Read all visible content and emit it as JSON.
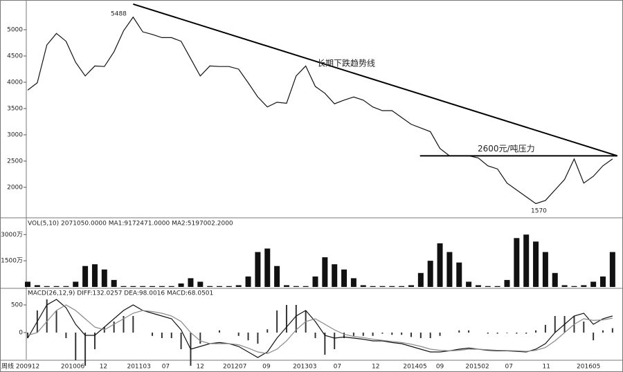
{
  "chart_data": {
    "type": "stock",
    "price": {
      "values": [
        3850,
        3990,
        4710,
        4930,
        4780,
        4380,
        4120,
        4310,
        4300,
        4580,
        4980,
        5240,
        4960,
        4910,
        4850,
        4850,
        4780,
        4450,
        4120,
        4310,
        4300,
        4300,
        4250,
        3990,
        3720,
        3530,
        3620,
        3600,
        4120,
        4310,
        3920,
        3790,
        3590,
        3660,
        3720,
        3660,
        3530,
        3460,
        3460,
        3330,
        3200,
        3130,
        3060,
        2740,
        2600,
        2600,
        2600,
        2560,
        2410,
        2350,
        2080,
        1950,
        1820,
        1690,
        1750,
        1950,
        2150,
        2540,
        2080,
        2210,
        2410,
        2540
      ],
      "color": "#111",
      "ylim": [
        1420,
        5500
      ],
      "yticks": [
        2000,
        2500,
        3000,
        3500,
        4000,
        4500,
        5000
      ],
      "peak_label": "5488",
      "low_label": "1570",
      "trendline": {
        "x": [
          11,
          61.5
        ],
        "values": [
          5488,
          2600
        ],
        "label": "长期下跌趋势线"
      },
      "resistance": {
        "x": [
          42,
          61.5
        ],
        "value": 2600,
        "label": "2600元/吨压力"
      }
    },
    "volume": {
      "header": "VOL(5,10) 2071050.0000 MA1:9172471.0000 MA2:5197002.2000",
      "values": [
        300,
        100,
        50,
        50,
        50,
        300,
        1200,
        1300,
        1000,
        400,
        50,
        50,
        50,
        50,
        50,
        50,
        200,
        500,
        300,
        50,
        50,
        50,
        100,
        600,
        2000,
        2200,
        1200,
        100,
        50,
        50,
        600,
        1700,
        1300,
        1000,
        500,
        100,
        50,
        50,
        50,
        50,
        100,
        800,
        1500,
        2500,
        2000,
        1400,
        300,
        100,
        50,
        50,
        400,
        2800,
        3000,
        2600,
        2000,
        800,
        100,
        50,
        100,
        300,
        600,
        2000
      ],
      "color": "#111",
      "ylim": [
        0,
        4000
      ],
      "yticks": [
        {
          "value": 1500,
          "label": "1500万"
        },
        {
          "value": 3000,
          "label": "3000万"
        }
      ]
    },
    "macd": {
      "header": "MACD(26,12,9) DIFF:132.0257 DEA:98.0016 MACD:68.0501",
      "ylim": [
        -500,
        800
      ],
      "yticks": [
        0,
        500
      ],
      "series": [
        {
          "name": "DIFF",
          "color": "#111",
          "values": [
            -100,
            200,
            500,
            600,
            450,
            150,
            -50,
            -50,
            100,
            250,
            400,
            500,
            400,
            350,
            300,
            250,
            50,
            -300,
            -250,
            -200,
            -180,
            -200,
            -250,
            -350,
            -450,
            -350,
            -100,
            100,
            300,
            400,
            200,
            -50,
            -100,
            -80,
            -100,
            -120,
            -150,
            -150,
            -180,
            -200,
            -250,
            -300,
            -350,
            -350,
            -330,
            -300,
            -280,
            -300,
            -320,
            -330,
            -330,
            -340,
            -350,
            -300,
            -200,
            0,
            150,
            300,
            350,
            150,
            250,
            300
          ]
        },
        {
          "name": "DEA",
          "color": "#888",
          "values": [
            -50,
            0,
            200,
            400,
            500,
            400,
            250,
            100,
            50,
            150,
            250,
            350,
            400,
            380,
            350,
            300,
            200,
            0,
            -150,
            -200,
            -200,
            -200,
            -220,
            -280,
            -350,
            -380,
            -300,
            -150,
            50,
            200,
            250,
            150,
            50,
            -30,
            -70,
            -90,
            -120,
            -140,
            -160,
            -180,
            -210,
            -250,
            -300,
            -320,
            -330,
            -320,
            -300,
            -300,
            -310,
            -320,
            -325,
            -330,
            -340,
            -320,
            -270,
            -150,
            0,
            150,
            250,
            220,
            230,
            260
          ]
        }
      ],
      "bars": [
        -100,
        400,
        600,
        400,
        -100,
        -500,
        -600,
        -300,
        100,
        200,
        300,
        300,
        0,
        -60,
        -100,
        -100,
        -300,
        -600,
        -200,
        0,
        40,
        0,
        -60,
        -140,
        -200,
        60,
        400,
        500,
        500,
        400,
        -100,
        -400,
        -300,
        -100,
        -60,
        -60,
        -60,
        -20,
        -40,
        -40,
        -80,
        -100,
        -100,
        -60,
        0,
        40,
        40,
        0,
        -20,
        -20,
        -10,
        -20,
        -20,
        40,
        140,
        300,
        300,
        300,
        200,
        -140,
        40,
        80
      ]
    },
    "period_label": "周线",
    "xticks": [
      {
        "value": 0,
        "label": "200912"
      },
      {
        "value": 4.7,
        "label": "201006"
      },
      {
        "value": 7.9,
        "label": "12"
      },
      {
        "value": 11.6,
        "label": "201103"
      },
      {
        "value": 14.4,
        "label": "07"
      },
      {
        "value": 18,
        "label": "12"
      },
      {
        "value": 21.6,
        "label": "201207"
      },
      {
        "value": 24.9,
        "label": "09"
      },
      {
        "value": 28.9,
        "label": "201303"
      },
      {
        "value": 32.3,
        "label": "07"
      },
      {
        "value": 36.3,
        "label": "12"
      },
      {
        "value": 40.4,
        "label": "201405"
      },
      {
        "value": 43,
        "label": "09"
      },
      {
        "value": 46.9,
        "label": "201502"
      },
      {
        "value": 50.2,
        "label": "07"
      },
      {
        "value": 54.1,
        "label": "11"
      },
      {
        "value": 58.5,
        "label": "201605"
      }
    ]
  }
}
